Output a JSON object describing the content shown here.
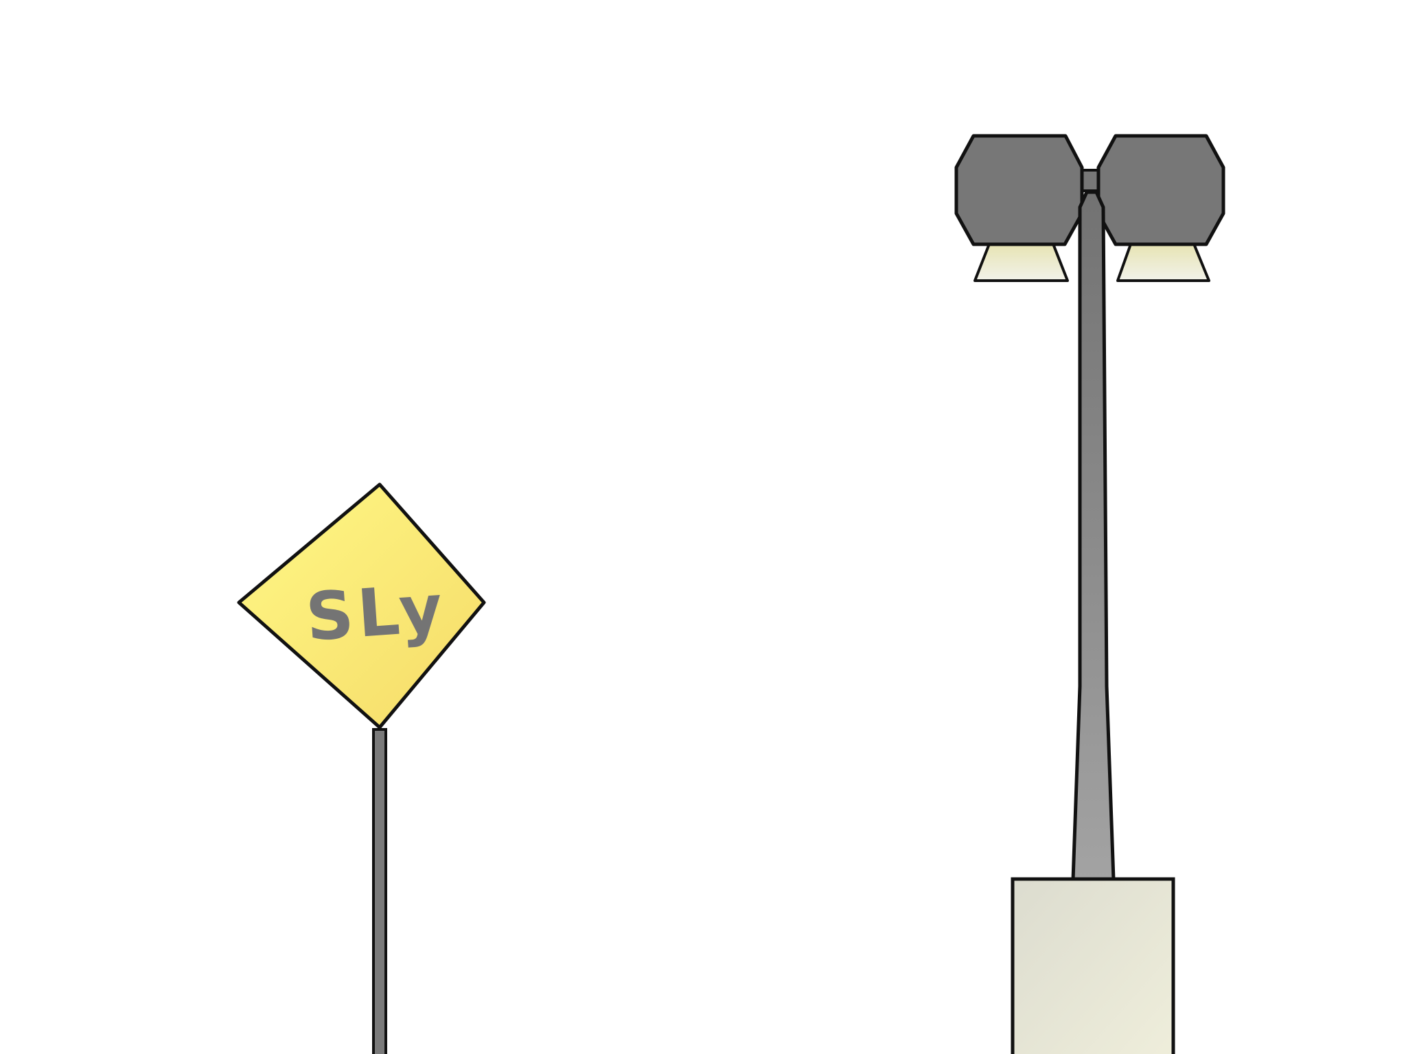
{
  "scene": {
    "background": "#ffffff"
  },
  "road_sign": {
    "text": "SLy",
    "shape": "diamond",
    "face_color": "#fff27a",
    "face_color_edge": "#f6dd6a",
    "text_color": "#747474",
    "post_color": "#7a7a7a",
    "outline_color": "#111111"
  },
  "street_lamp": {
    "head_count": 2,
    "housing_color": "#777777",
    "light_color": "#eceac0",
    "pole_color_top": "#7a7a7a",
    "pole_color_bottom": "#a0a0a0",
    "base_color": "#e3e3d2",
    "outline_color": "#111111"
  }
}
